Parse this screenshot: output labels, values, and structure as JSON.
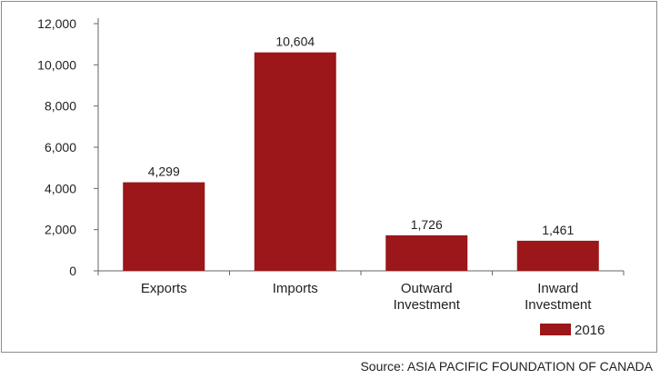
{
  "chart_data": {
    "type": "bar",
    "title": "",
    "xlabel": "",
    "ylabel": "",
    "categories": [
      "Exports",
      "Imports",
      "Outward\nInvestment",
      "Inward\nInvestment"
    ],
    "series": [
      {
        "name": "2016",
        "values": [
          4299,
          10604,
          1726,
          1461
        ],
        "color": "#9b1719"
      }
    ],
    "data_labels": [
      "4,299",
      "10,604",
      "1,726",
      "1,461"
    ],
    "yticks": [
      "0",
      "2,000",
      "4,000",
      "6,000",
      "8,000",
      "10,000",
      "12,000"
    ],
    "ylim": [
      0,
      12000
    ],
    "grid": false,
    "legend_position": "bottom-right"
  },
  "source": "Source: ASIA PACIFIC FOUNDATION OF CANADA"
}
